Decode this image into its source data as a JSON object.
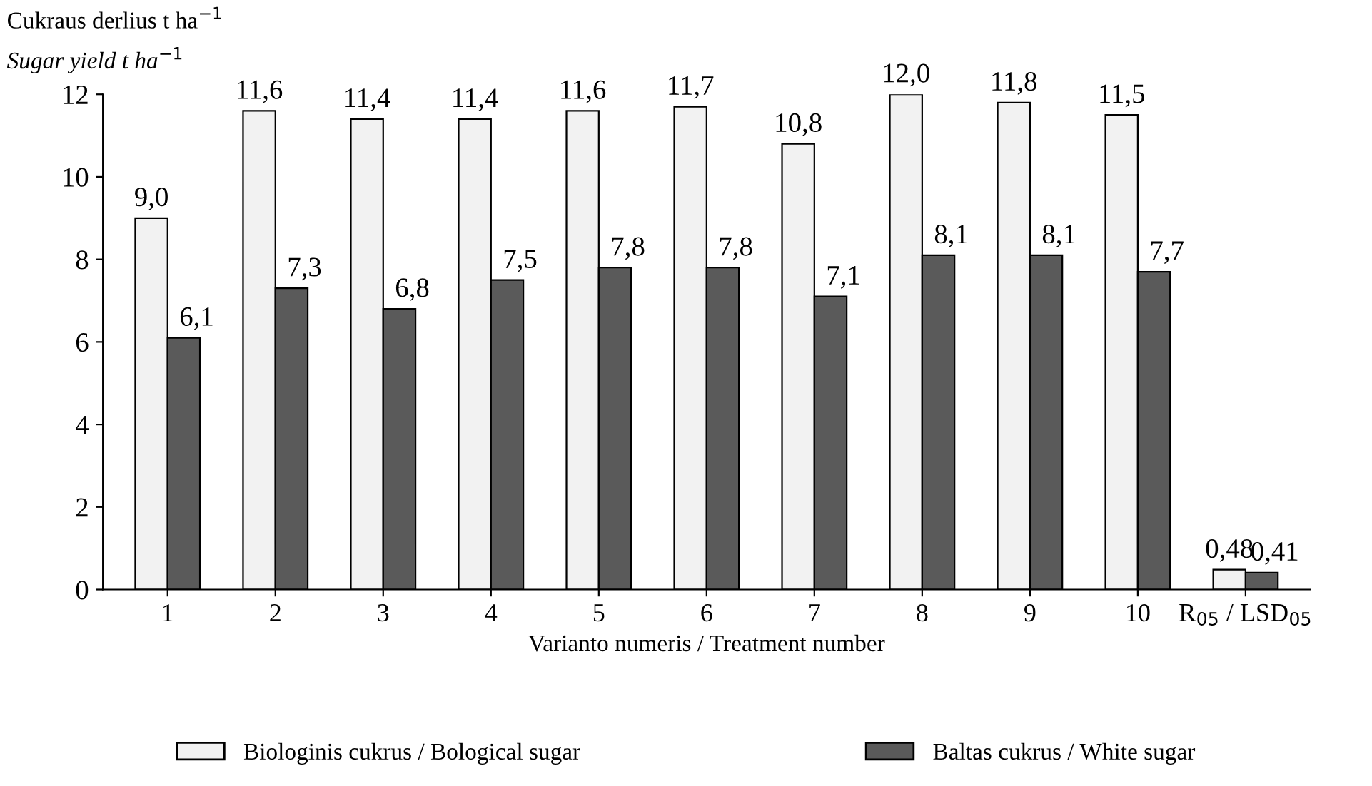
{
  "chart_data": {
    "type": "bar",
    "ylabel": "Cukraus derlius t ha$^{−1}$\nSugar yield t ha$^{−1}$",
    "xlabel": "Varianto numeris / Treatment number",
    "categories": [
      "1",
      "2",
      "3",
      "4",
      "5",
      "6",
      "7",
      "8",
      "9",
      "10",
      "R$_{05}$ / LSD$_{05}$"
    ],
    "series": [
      {
        "name": "Biologinis cukrus / Bological sugar",
        "color": "#f2f2f2",
        "values": [
          9.0,
          11.6,
          11.4,
          11.4,
          11.6,
          11.7,
          10.8,
          12.0,
          11.8,
          11.5,
          0.48
        ],
        "value_labels": [
          "9,0",
          "11,6",
          "11,4",
          "11,4",
          "11,6",
          "11,7",
          "10,8",
          "12,0",
          "11,8",
          "11,5",
          "0,48"
        ]
      },
      {
        "name": "Baltas cukrus / White sugar",
        "color": "#5a5a5a",
        "values": [
          6.1,
          7.3,
          6.8,
          7.5,
          7.8,
          7.8,
          7.1,
          8.1,
          8.1,
          7.7,
          0.41
        ],
        "value_labels": [
          "6,1",
          "7,3",
          "6,8",
          "7,5",
          "7,8",
          "7,8",
          "7,1",
          "8,1",
          "8,1",
          "7,7",
          "0,41"
        ]
      }
    ],
    "ylim": [
      0,
      12
    ],
    "yticks": [
      0,
      2,
      4,
      6,
      8,
      10,
      12
    ],
    "grid": false,
    "legend": "bottom"
  }
}
